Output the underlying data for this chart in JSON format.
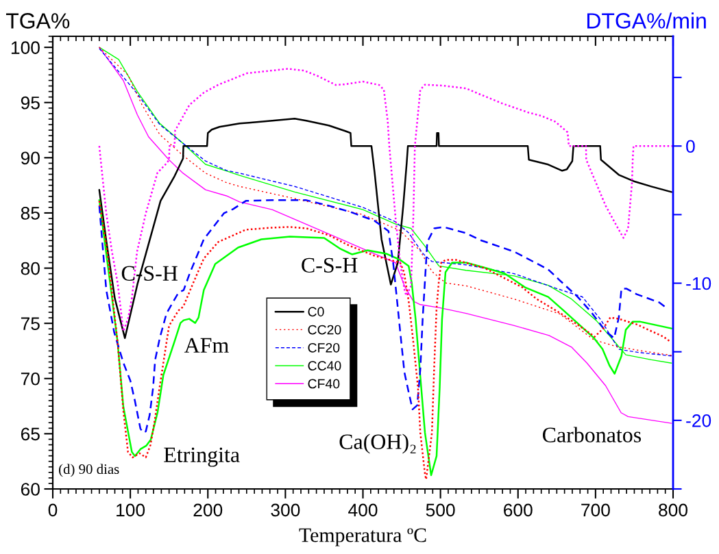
{
  "chart_data": {
    "type": "line",
    "xlabel": "Temperatura ºC",
    "ylabel": "TGA%",
    "y2label": "DTGA%/min",
    "xlim": [
      0,
      800
    ],
    "xticks": [
      0,
      100,
      200,
      300,
      400,
      500,
      600,
      700,
      800
    ],
    "ylim": [
      60,
      101
    ],
    "yticks": [
      60,
      65,
      70,
      75,
      80,
      85,
      90,
      95,
      100
    ],
    "y2lim": [
      -25,
      8
    ],
    "y2ticks": [
      {
        "value": -25,
        "label": null
      },
      -20,
      {
        "value": -15,
        "label": null
      },
      -10,
      {
        "value": -5,
        "label": null
      },
      0,
      {
        "value": 5,
        "label": null
      }
    ],
    "legend": "lower center",
    "grid": false,
    "marker": "none",
    "annotations": [
      "C-S-H",
      "C-S-H",
      "AFm",
      "Etringita",
      "Ca(OH)₂",
      "Carbonatos",
      "(d) 90 dias"
    ],
    "series": [
      {
        "name": "C0",
        "color": "#000000",
        "axis": "y2",
        "line_style": "solid",
        "x": [
          60,
          69,
          80,
          93,
          109.5,
          139,
          157,
          168,
          168.5,
          199,
          200,
          205,
          215,
          241,
          253,
          283,
          312,
          327,
          356,
          377,
          384,
          385,
          411,
          415,
          424,
          436,
          445,
          452,
          456.5,
          458,
          495,
          495.5,
          497.5,
          498,
          612.6,
          614,
          639,
          657,
          663,
          670,
          671.5,
          706,
          707,
          730,
          751,
          772,
          798
        ],
        "values": [
          -3.2,
          -6.9,
          -11.1,
          -14.0,
          -10.0,
          -4.0,
          -2.2,
          -0.9,
          0,
          0,
          0.95,
          1.2,
          1.4,
          1.65,
          1.7,
          1.85,
          2.0,
          1.85,
          1.5,
          1.1,
          0.95,
          0,
          0,
          -1.9,
          -6.8,
          -10.1,
          -8.5,
          -4.35,
          -1.2,
          0,
          0,
          0.95,
          0.95,
          0,
          0,
          -1.0,
          -1.35,
          -1.8,
          -1.7,
          -1.1,
          0,
          0,
          -1.0,
          -2.1,
          -2.6,
          -2.95,
          -3.35
        ]
      },
      {
        "name": "CC20",
        "color": "#ff0000",
        "line_style": "dotted",
        "x": [
          60,
          70,
          97,
          115,
          138,
          168,
          197,
          224,
          241,
          312,
          400,
          448,
          474,
          489,
          507,
          533,
          595,
          654,
          698,
          727,
          760,
          798
        ],
        "values": [
          100,
          99.3,
          97.5,
          94.8,
          92.1,
          90.2,
          88.6,
          87.75,
          87.4,
          86.3,
          84.85,
          83.4,
          81.55,
          79.7,
          78.65,
          78.4,
          77.2,
          75.85,
          73.5,
          72.9,
          72.5,
          72.1
        ]
      },
      {
        "name": "CF20",
        "color": "#0000ff",
        "line_style": "dashed",
        "x": [
          60,
          109,
          138,
          168,
          197,
          224,
          241,
          312,
          400,
          442,
          459,
          477,
          489,
          533,
          595,
          648,
          683,
          707,
          730,
          757,
          798
        ],
        "values": [
          99.9,
          95.8,
          93.0,
          91.3,
          89.7,
          88.85,
          88.6,
          87.4,
          85.5,
          84.2,
          83.2,
          81.35,
          80.6,
          80.3,
          79.5,
          78.2,
          77.4,
          75.3,
          72.65,
          72.35,
          72.05
        ]
      },
      {
        "name": "CC40",
        "color": "#00ff00",
        "line_style": "solid",
        "x": [
          60,
          85,
          109,
          138,
          168,
          197,
          224,
          241,
          312,
          400,
          442,
          462,
          480,
          498,
          533,
          595,
          639,
          669,
          701,
          725,
          739,
          772,
          798
        ],
        "values": [
          100,
          98.9,
          96.0,
          93.1,
          91.3,
          89.4,
          88.8,
          88.4,
          86.9,
          85.3,
          84.0,
          83.6,
          82.0,
          80.2,
          79.8,
          79.3,
          78.45,
          77.2,
          75.25,
          73.3,
          72.15,
          71.7,
          71.4
        ]
      },
      {
        "name": "CF40",
        "color": "#ff00ff",
        "line_style": "solid",
        "x": [
          60,
          91,
          109,
          123.5,
          150,
          168,
          197,
          224,
          241,
          283,
          359,
          415,
          442,
          453.5,
          465,
          474,
          500,
          533,
          595,
          640,
          669,
          689,
          713,
          733,
          742,
          798
        ],
        "values": [
          100,
          97.0,
          93.9,
          91.9,
          89.8,
          88.6,
          87.1,
          86.55,
          86.0,
          85.3,
          83.0,
          81.3,
          80.5,
          78.4,
          77.0,
          76.7,
          76.4,
          75.9,
          74.8,
          73.9,
          72.85,
          71.4,
          69.35,
          66.9,
          66.55,
          65.95
        ]
      },
      {
        "color": "#ff0000",
        "axis": "y2",
        "line_style": "dotted",
        "x": [
          60,
          70.4,
          83.6,
          91,
          97,
          103,
          112,
          120,
          126,
          131.5,
          138,
          150,
          162,
          168.4,
          181,
          194.8,
          213.3,
          249,
          283,
          305,
          327,
          356,
          382,
          415,
          448,
          453,
          459,
          465,
          471,
          474,
          480,
          481.5,
          489,
          492,
          495,
          498,
          501,
          507,
          520,
          557,
          605.5,
          624,
          655,
          684,
          699,
          710,
          719,
          730,
          753,
          787.5,
          795
        ],
        "values": [
          -4.0,
          -7.7,
          -14.3,
          -19.3,
          -22.3,
          -22.7,
          -22.4,
          -22.7,
          -21.8,
          -20.0,
          -17.5,
          -13.1,
          -12.0,
          -11.7,
          -10.0,
          -8.2,
          -7.0,
          -6.1,
          -5.95,
          -5.9,
          -6.0,
          -6.5,
          -7.25,
          -8.0,
          -8.5,
          -9.2,
          -11.3,
          -14.3,
          -17.6,
          -20.9,
          -23.9,
          -24.3,
          -20.9,
          -16.0,
          -11.8,
          -9.8,
          -8.5,
          -8.3,
          -8.3,
          -8.9,
          -10.3,
          -11.15,
          -12.2,
          -13.3,
          -13.9,
          -13.3,
          -12.5,
          -12.6,
          -13.0,
          -13.9,
          -14.2
        ]
      },
      {
        "color": "#0000ff",
        "axis": "y2",
        "line_style": "dashed",
        "x": [
          60,
          69,
          79.3,
          91,
          100,
          106,
          113,
          116.7,
          120,
          125,
          129.4,
          132,
          138,
          146.7,
          162,
          168.8,
          176.5,
          194.8,
          220.7,
          232.5,
          249,
          283,
          327,
          356,
          386,
          415,
          433,
          439,
          445,
          448,
          453.5,
          459,
          464,
          470,
          474,
          477,
          483,
          492,
          504,
          533,
          551,
          595,
          639,
          654,
          677,
          695,
          713,
          724,
          730,
          733.4,
          740,
          753,
          782,
          789
        ],
        "values": [
          -4.35,
          -10.5,
          -13.6,
          -15.8,
          -17.1,
          -18.6,
          -20.6,
          -20.9,
          -20.8,
          -19.6,
          -17.6,
          -15.6,
          -14.0,
          -12.2,
          -10.7,
          -10.5,
          -9.3,
          -6.8,
          -4.9,
          -4.6,
          -4.0,
          -3.95,
          -3.95,
          -4.35,
          -4.85,
          -5.45,
          -6.2,
          -8.5,
          -11.8,
          -13.5,
          -16.5,
          -17.95,
          -19.2,
          -18.9,
          -16.3,
          -12.65,
          -7.0,
          -6.0,
          -5.9,
          -6.35,
          -6.85,
          -7.7,
          -9.0,
          -9.8,
          -11.0,
          -12.15,
          -13.5,
          -14.0,
          -12.5,
          -10.4,
          -10.4,
          -10.8,
          -11.4,
          -11.7
        ]
      },
      {
        "color": "#00ff00",
        "axis": "y2",
        "line_style": "solid",
        "x": [
          60,
          76.3,
          83.6,
          91,
          102,
          106,
          113,
          120.5,
          126.4,
          135.2,
          142.6,
          157.3,
          164.7,
          168.8,
          176,
          183.7,
          188,
          194.8,
          209.5,
          239,
          269,
          305.8,
          350,
          371,
          386,
          406,
          430,
          448,
          459,
          463,
          468,
          474,
          480,
          488,
          495,
          499,
          502,
          506.5,
          515,
          533,
          559,
          583,
          609,
          639,
          659,
          698,
          709,
          718,
          724.6,
          733.4,
          739,
          748,
          757,
          798
        ],
        "values": [
          -3.95,
          -11.0,
          -14.3,
          -19.0,
          -22.3,
          -22.6,
          -22.1,
          -21.85,
          -21.4,
          -19.4,
          -16.7,
          -14.2,
          -12.9,
          -12.7,
          -12.6,
          -12.9,
          -12.5,
          -10.5,
          -8.6,
          -7.4,
          -6.8,
          -6.6,
          -6.7,
          -7.5,
          -7.9,
          -7.6,
          -7.85,
          -8.3,
          -8.75,
          -10.0,
          -12.65,
          -16.8,
          -20.9,
          -24.0,
          -22.6,
          -17.6,
          -12.65,
          -9.2,
          -8.5,
          -8.5,
          -8.9,
          -9.3,
          -10.3,
          -11.0,
          -12.0,
          -14.0,
          -14.8,
          -16.0,
          -16.6,
          -15.3,
          -13.4,
          -12.8,
          -12.8,
          -13.3
        ]
      },
      {
        "color": "#ff00ff",
        "axis": "y2",
        "line_style": "dotted",
        "x": [
          60,
          61.6,
          69,
          76.3,
          83.7,
          91,
          97,
          102,
          108.7,
          120,
          135,
          146.7,
          150,
          150.5,
          157,
          157.8,
          176.3,
          195,
          213.3,
          250,
          303,
          324,
          342,
          365,
          377,
          400,
          421,
          427,
          432,
          434,
          442,
          448,
          454,
          456,
          462,
          465,
          467,
          474,
          480,
          504,
          533,
          551,
          580,
          613,
          630,
          648,
          664,
          665.6,
          687.7,
          688,
          713,
          727.5,
          736,
          742,
          747,
          748,
          749,
          800
        ],
        "values": [
          0,
          -0.9,
          -4.9,
          -7.7,
          -10.0,
          -13.5,
          -12.6,
          -11.1,
          -7.7,
          -4.9,
          -1.95,
          -1.26,
          -1.0,
          0,
          0,
          1.13,
          3.0,
          3.9,
          4.46,
          5.3,
          5.63,
          5.5,
          5.1,
          4.45,
          4.5,
          4.7,
          4.45,
          4.1,
          1.8,
          0,
          -5.2,
          -8.5,
          -10.6,
          -10.9,
          -10.2,
          -5.2,
          0,
          4.1,
          4.47,
          4.4,
          4.2,
          3.77,
          3.1,
          2.45,
          2.2,
          1.78,
          1.0,
          0,
          0,
          -1.0,
          -4.35,
          -5.85,
          -6.7,
          -6.0,
          -2.7,
          -0.9,
          0,
          0
        ]
      }
    ]
  }
}
